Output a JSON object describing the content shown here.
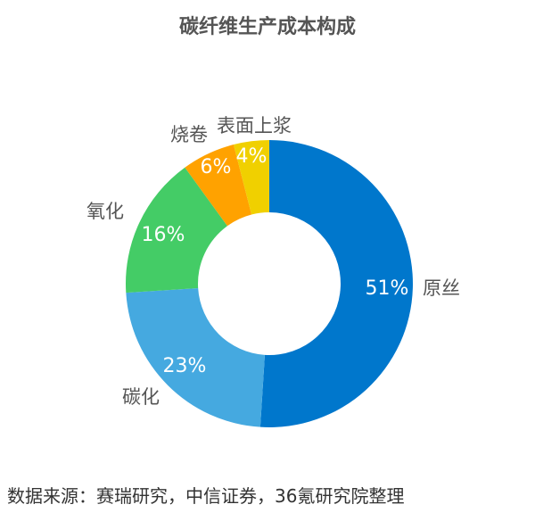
{
  "chart_data": {
    "type": "pie",
    "donut": true,
    "title": "碳纤维生产成本构成",
    "categories": [
      "原丝",
      "碳化",
      "氧化",
      "烧卷",
      "表面上浆"
    ],
    "values": [
      51,
      23,
      16,
      6,
      4
    ],
    "data_labels": [
      "51%",
      "23%",
      "16%",
      "6%",
      "4%"
    ],
    "colors": [
      "#0077CC",
      "#45A9E0",
      "#44CC66",
      "#FFA200",
      "#F0D000"
    ],
    "legend": "none"
  },
  "source": "数据来源：赛瑞研究，中信证券，36氪研究院整理"
}
